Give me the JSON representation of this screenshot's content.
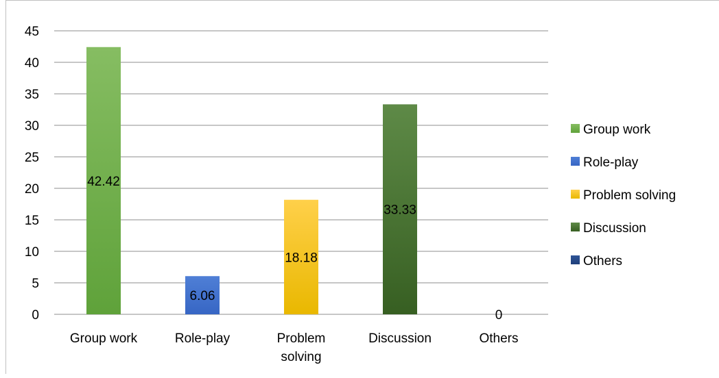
{
  "chart_data": {
    "type": "bar",
    "categories": [
      "Group work",
      "Role-play",
      "Problem solving",
      "Discussion",
      "Others"
    ],
    "category_labels": [
      [
        "Group work"
      ],
      [
        "Role-play"
      ],
      [
        "Problem",
        "solving"
      ],
      [
        "Discussion"
      ],
      [
        "Others"
      ]
    ],
    "values": [
      42.42,
      6.06,
      18.18,
      33.33,
      0
    ],
    "data_labels": [
      "42.42",
      "6.06",
      "18.18",
      "33.33",
      "0"
    ],
    "ylim": [
      0,
      45
    ],
    "yticks": [
      0,
      5,
      10,
      15,
      20,
      25,
      30,
      35,
      40,
      45
    ],
    "grid": true,
    "legend_position": "right",
    "legend": [
      "Group work",
      "Role-play",
      "Problem solving",
      "Discussion",
      "Others"
    ],
    "colors": [
      {
        "top": "#86bd62",
        "bottom": "#5fa23a"
      },
      {
        "top": "#4f7fd6",
        "bottom": "#3766c4"
      },
      {
        "top": "#ffd04a",
        "bottom": "#e9b800"
      },
      {
        "top": "#5e8a47",
        "bottom": "#375f22"
      },
      {
        "top": "#2f5597",
        "bottom": "#1f3f7a"
      }
    ],
    "title": "",
    "xlabel": "",
    "ylabel": ""
  }
}
